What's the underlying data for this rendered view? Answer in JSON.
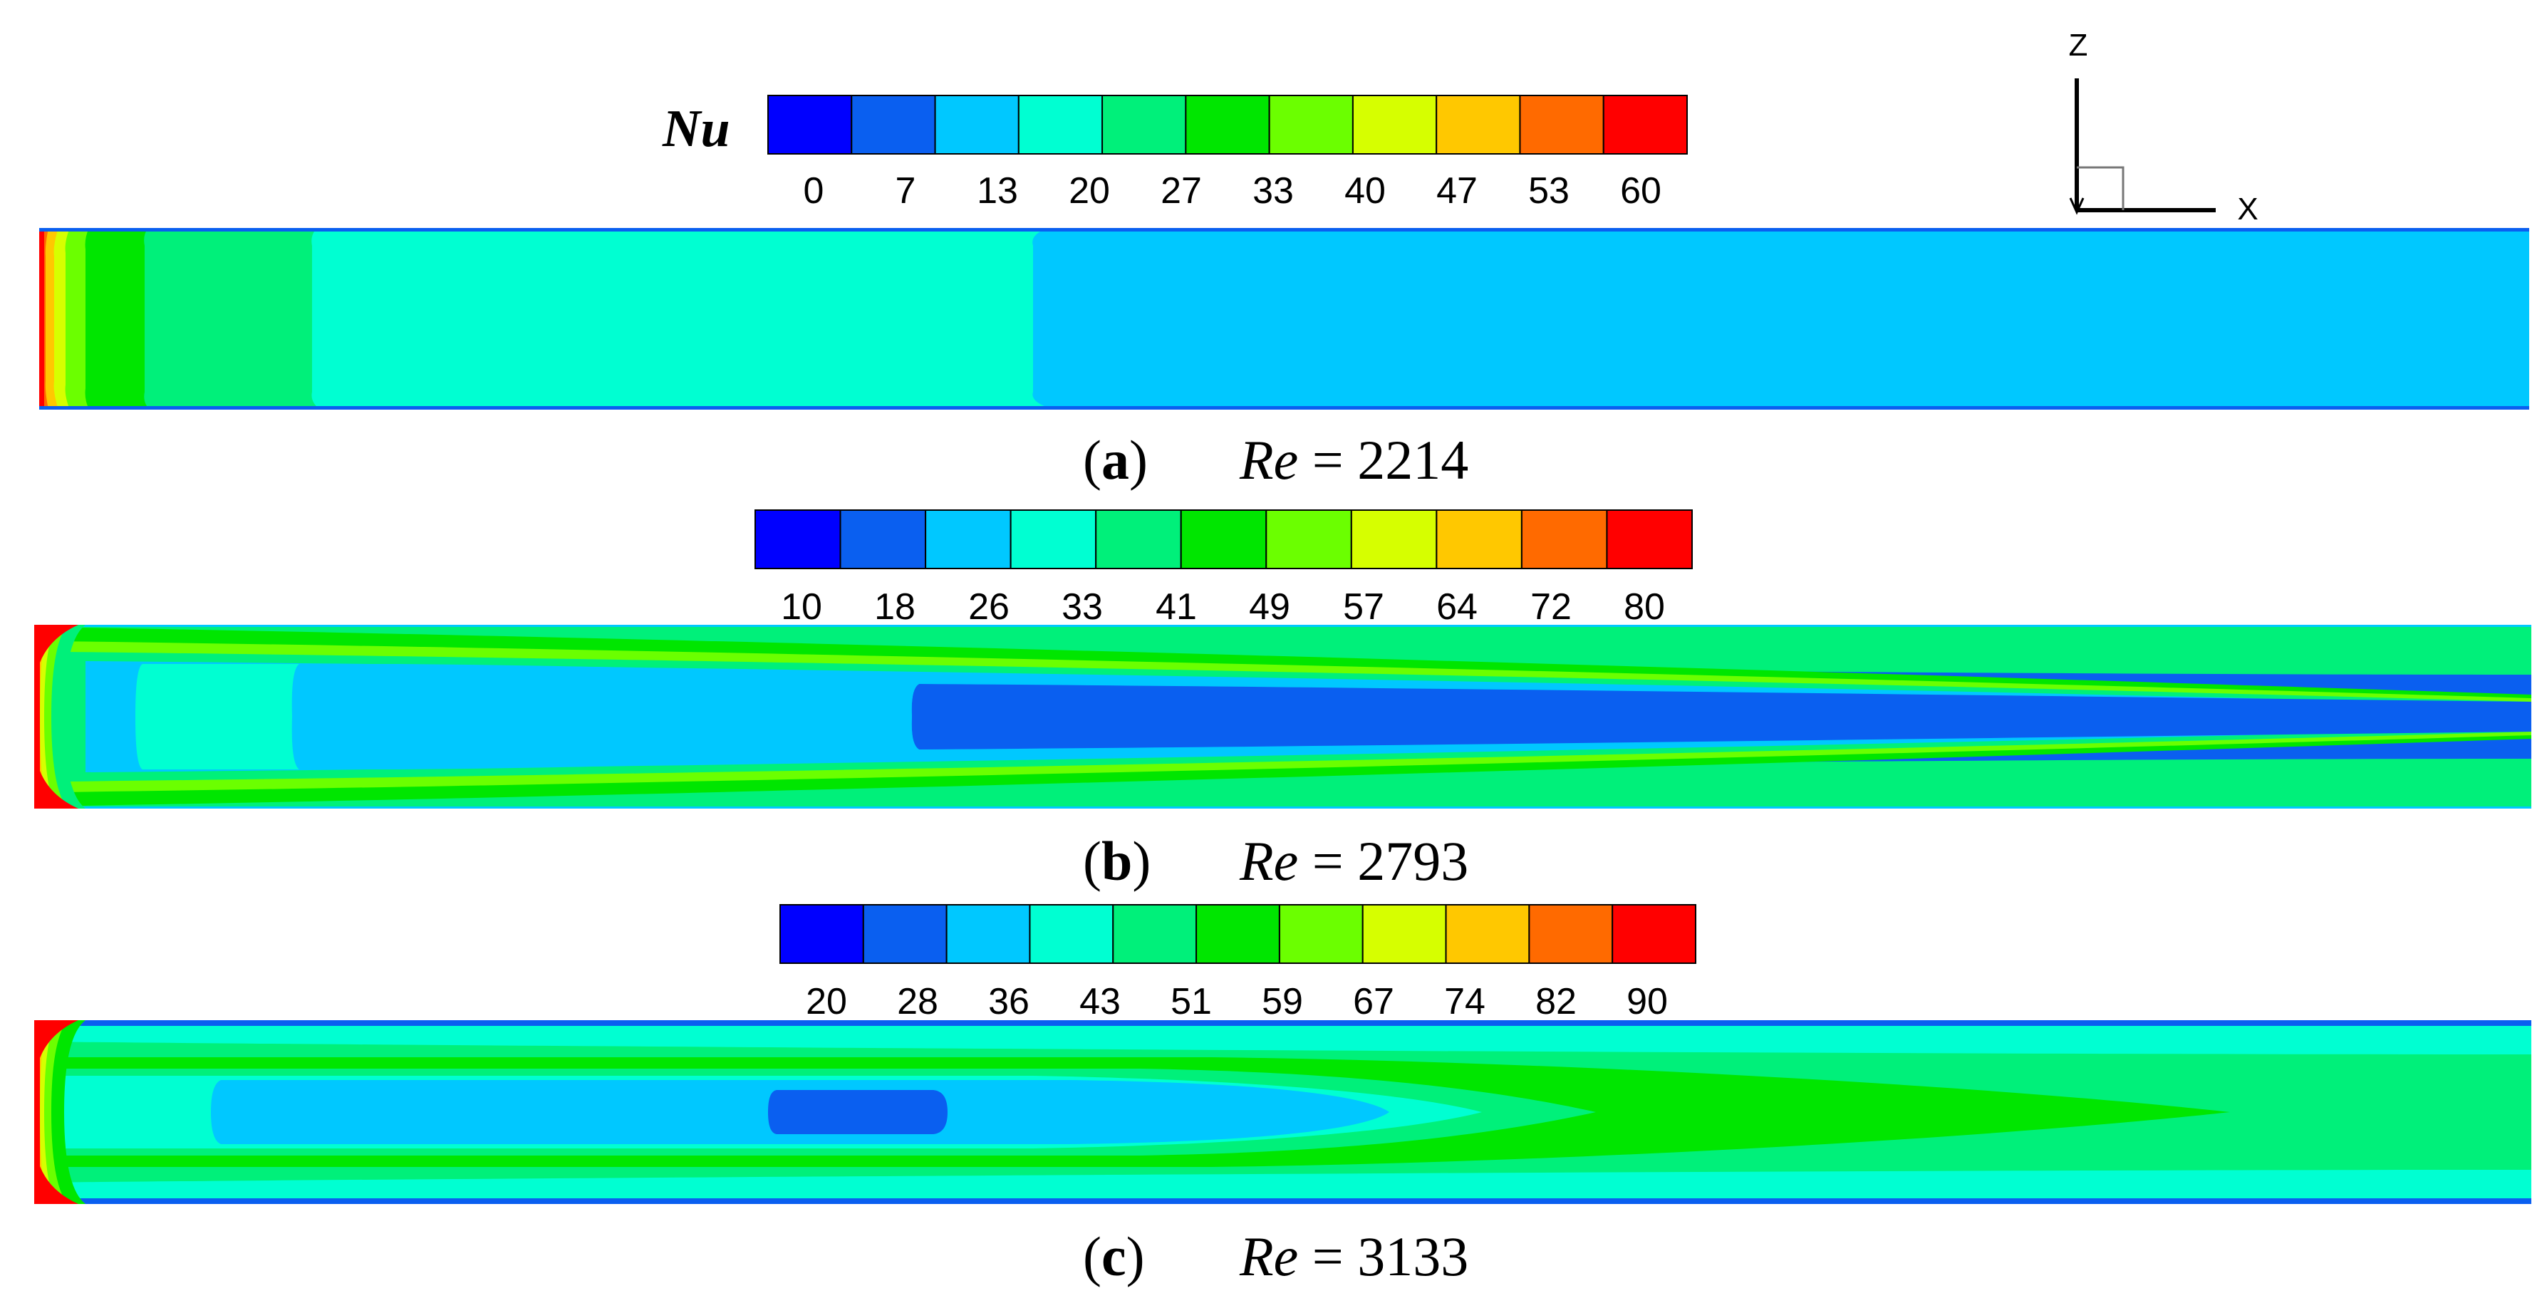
{
  "colormap": [
    "#0000ff",
    "#0a5ff0",
    "#00c8ff",
    "#00ffd2",
    "#00f07a",
    "#00e600",
    "#6bff00",
    "#d6ff00",
    "#ffc800",
    "#ff6a00",
    "#ff0000"
  ],
  "legend_title": "Nu",
  "axes": {
    "vertical": "Z",
    "horizontal": "X"
  },
  "panels": [
    {
      "id": "a",
      "label_letter": "a",
      "re_symbol": "Re",
      "re_value": "= 2214",
      "ticks": [
        "0",
        "7",
        "13",
        "20",
        "27",
        "33",
        "40",
        "47",
        "53",
        "60"
      ]
    },
    {
      "id": "b",
      "label_letter": "b",
      "re_symbol": "Re",
      "re_value": "= 2793",
      "ticks": [
        "10",
        "18",
        "26",
        "33",
        "41",
        "49",
        "57",
        "64",
        "72",
        "80"
      ]
    },
    {
      "id": "c",
      "label_letter": "c",
      "re_symbol": "Re",
      "re_value": "= 3133",
      "ticks": [
        "20",
        "28",
        "36",
        "43",
        "51",
        "59",
        "67",
        "74",
        "82",
        "90"
      ]
    }
  ]
}
